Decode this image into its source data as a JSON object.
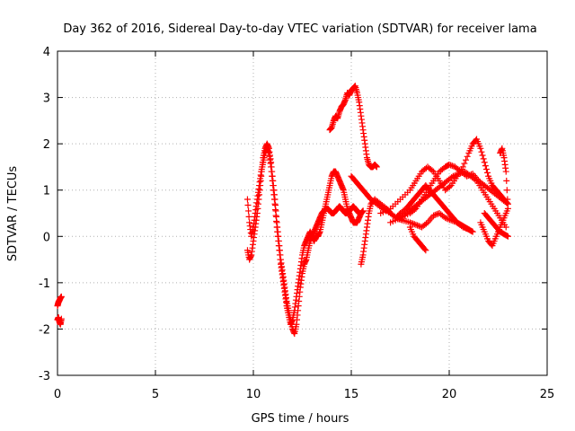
{
  "chart_data": {
    "type": "scatter",
    "title": "Day 362 of 2016, Sidereal Day-to-day VTEC variation (SDTVAR) for receiver lama",
    "xlabel": "GPS time / hours",
    "ylabel": "SDTVAR / TECUs",
    "xlim": [
      0,
      25
    ],
    "ylim": [
      -3,
      4
    ],
    "xticks": [
      "0",
      "5",
      "10",
      "15",
      "20",
      "25"
    ],
    "yticks": [
      "-3",
      "-2",
      "-1",
      "0",
      "1",
      "2",
      "3",
      "4"
    ],
    "grid": true,
    "marker": "+",
    "color": "#ff0000",
    "series": [
      {
        "x": [
          0.0,
          0.05,
          0.1,
          0.15,
          0.2
        ],
        "y": [
          -1.5,
          -1.42,
          -1.38,
          -1.33,
          -1.3
        ]
      },
      {
        "x": [
          0.0,
          0.05,
          0.1,
          0.15,
          0.2
        ],
        "y": [
          -1.8,
          -1.75,
          -1.85,
          -1.9,
          -1.78
        ]
      },
      {
        "x": [
          9.7,
          9.8,
          9.9,
          10.0,
          10.1,
          10.2,
          10.3,
          10.4,
          10.5,
          10.6,
          10.7,
          10.8,
          10.9,
          11.0,
          11.1,
          11.2,
          11.3,
          11.4,
          11.5,
          11.6,
          11.7,
          11.8,
          11.9,
          12.0,
          12.1,
          12.2,
          12.3,
          12.4,
          12.5,
          12.6,
          12.7,
          12.8,
          12.9,
          13.0,
          13.1,
          13.2,
          13.3,
          13.4,
          13.5,
          13.6,
          13.7,
          13.8,
          13.9,
          14.0,
          14.1,
          14.2,
          14.3,
          14.4,
          14.5,
          14.6,
          14.7,
          14.8,
          14.9,
          15.0,
          15.1,
          15.2,
          15.3,
          15.4,
          15.5,
          15.6
        ],
        "y": [
          -0.3,
          -0.5,
          -0.4,
          -0.1,
          0.2,
          0.5,
          0.9,
          1.3,
          1.7,
          1.9,
          2.0,
          1.9,
          1.6,
          1.2,
          0.8,
          0.3,
          -0.1,
          -0.5,
          -0.8,
          -1.1,
          -1.4,
          -1.6,
          -1.8,
          -2.0,
          -2.1,
          -1.9,
          -1.5,
          -1.1,
          -0.8,
          -0.6,
          -0.5,
          -0.3,
          -0.1,
          0.0,
          -0.1,
          0.0,
          0.0,
          0.1,
          0.3,
          0.5,
          0.7,
          0.9,
          1.1,
          1.3,
          1.4,
          1.4,
          1.3,
          1.2,
          1.1,
          1.0,
          0.8,
          0.6,
          0.5,
          0.4,
          0.3,
          0.3,
          0.3,
          0.4,
          0.5,
          0.55
        ]
      },
      {
        "x": [
          9.7,
          9.8,
          9.9,
          10.0,
          10.1,
          10.2,
          10.3,
          10.4,
          10.5,
          10.6,
          10.7,
          10.8,
          10.9,
          11.0,
          11.1,
          11.2,
          11.3,
          11.4,
          11.5,
          11.6,
          11.7,
          11.8,
          11.9,
          12.0,
          12.1,
          12.2,
          12.3,
          12.4,
          12.5,
          12.6,
          12.7,
          12.8,
          12.9,
          13.0,
          13.1,
          13.2,
          13.3,
          13.4,
          13.5,
          13.6,
          13.7,
          13.8,
          13.9,
          14.0,
          14.1,
          14.2,
          14.3,
          14.4,
          14.5,
          14.6,
          14.7,
          14.8,
          14.9,
          15.0,
          15.1,
          15.2,
          15.3,
          15.4,
          15.5,
          15.6
        ],
        "y": [
          0.8,
          0.3,
          0.0,
          0.2,
          0.5,
          0.8,
          1.1,
          1.4,
          1.6,
          1.8,
          1.9,
          1.8,
          1.5,
          1.1,
          0.7,
          0.2,
          -0.2,
          -0.6,
          -0.9,
          -1.2,
          -1.5,
          -1.7,
          -1.9,
          -1.8,
          -1.6,
          -1.3,
          -1.0,
          -0.7,
          -0.4,
          -0.2,
          -0.1,
          0.0,
          0.1,
          0.0,
          0.1,
          0.2,
          0.3,
          0.4,
          0.5,
          0.55,
          0.6,
          0.6,
          0.55,
          0.5,
          0.5,
          0.55,
          0.6,
          0.65,
          0.6,
          0.55,
          0.5,
          0.5,
          0.55,
          0.6,
          0.65,
          0.6,
          0.55,
          0.5,
          0.5,
          0.55
        ]
      },
      {
        "x": [
          13.9,
          14.0,
          14.1,
          14.2,
          14.3,
          14.4,
          14.5,
          14.6,
          14.7,
          14.8,
          14.9,
          15.0,
          15.1,
          15.2,
          15.3,
          15.4,
          15.5,
          15.6,
          15.7,
          15.8,
          15.9,
          16.0,
          16.1,
          16.2,
          16.3
        ],
        "y": [
          2.3,
          2.35,
          2.5,
          2.6,
          2.55,
          2.7,
          2.8,
          2.85,
          2.95,
          3.1,
          3.05,
          3.15,
          3.2,
          3.25,
          3.1,
          2.9,
          2.6,
          2.3,
          2.0,
          1.7,
          1.55,
          1.5,
          1.5,
          1.55,
          1.5
        ]
      },
      {
        "x": [
          15.5,
          15.6,
          15.7,
          15.8,
          15.9,
          16.0,
          16.2,
          16.5,
          16.8,
          17.0,
          17.3,
          17.5,
          17.8,
          18.0,
          18.2,
          18.4,
          18.6,
          18.8,
          19.0,
          19.2,
          19.4,
          19.6,
          19.8,
          20.0,
          20.2,
          20.4,
          20.6,
          20.8,
          21.0
        ],
        "y": [
          -0.6,
          -0.4,
          -0.1,
          0.2,
          0.5,
          0.7,
          0.8,
          0.7,
          0.6,
          0.5,
          0.4,
          0.5,
          0.6,
          0.7,
          0.8,
          0.9,
          1.0,
          1.1,
          1.0,
          0.9,
          0.8,
          0.7,
          0.6,
          0.5,
          0.4,
          0.3,
          0.25,
          0.2,
          0.15
        ]
      },
      {
        "x": [
          15.0,
          15.2,
          15.4,
          15.6,
          15.8,
          16.0,
          16.3,
          16.6,
          17.0,
          17.3,
          17.6,
          18.0,
          18.3,
          18.6,
          18.9,
          19.2,
          19.5,
          19.8,
          20.1,
          20.4,
          20.7,
          21.0,
          21.2
        ],
        "y": [
          1.3,
          1.2,
          1.1,
          1.0,
          0.9,
          0.8,
          0.7,
          0.6,
          0.5,
          0.4,
          0.35,
          0.3,
          0.25,
          0.2,
          0.3,
          0.45,
          0.5,
          0.4,
          0.35,
          0.3,
          0.2,
          0.15,
          0.1
        ]
      },
      {
        "x": [
          16.5,
          17.0,
          17.5,
          18.0,
          18.3,
          18.6,
          18.9,
          19.2,
          19.5,
          19.8,
          20.1,
          20.4,
          20.7,
          21.0,
          21.2,
          21.4,
          21.6,
          21.8,
          22.0,
          22.2,
          22.4,
          22.6,
          22.8,
          23.0
        ],
        "y": [
          0.5,
          0.6,
          0.8,
          1.0,
          1.2,
          1.4,
          1.5,
          1.4,
          1.2,
          1.0,
          1.1,
          1.3,
          1.5,
          1.8,
          2.0,
          2.1,
          1.9,
          1.6,
          1.3,
          1.1,
          1.0,
          0.9,
          0.8,
          0.7
        ]
      },
      {
        "x": [
          17.0,
          17.5,
          18.0,
          18.3,
          18.6,
          18.9,
          19.2,
          19.5,
          19.8,
          20.0,
          20.3,
          20.6,
          20.9,
          21.2,
          21.5,
          21.8,
          22.1,
          22.4,
          22.7,
          23.0
        ],
        "y": [
          0.3,
          0.4,
          0.5,
          0.6,
          0.8,
          1.0,
          1.2,
          1.4,
          1.5,
          1.55,
          1.5,
          1.4,
          1.3,
          1.35,
          1.2,
          1.1,
          1.0,
          0.9,
          0.8,
          0.7
        ]
      },
      {
        "x": [
          17.5,
          17.8,
          18.1,
          18.4,
          18.7,
          19.0,
          19.3,
          19.6,
          19.9,
          20.2,
          20.5,
          20.8,
          21.1,
          21.4,
          21.7,
          22.0,
          22.3,
          22.6,
          22.9
        ],
        "y": [
          0.4,
          0.5,
          0.6,
          0.7,
          0.8,
          0.9,
          1.0,
          1.1,
          1.2,
          1.3,
          1.35,
          1.4,
          1.3,
          1.2,
          1.0,
          0.8,
          0.6,
          0.4,
          0.2
        ]
      },
      {
        "x": [
          18.0,
          18.2,
          18.4,
          18.6,
          18.8
        ],
        "y": [
          0.2,
          0.0,
          -0.1,
          -0.2,
          -0.3
        ]
      },
      {
        "x": [
          21.6,
          21.8,
          22.0,
          22.2,
          22.4,
          22.6,
          22.8,
          23.0,
          22.9,
          22.8,
          22.7,
          22.6
        ],
        "y": [
          0.3,
          0.1,
          -0.1,
          -0.2,
          0.0,
          0.2,
          0.4,
          0.6,
          1.4,
          1.7,
          1.9,
          1.8
        ]
      },
      {
        "x": [
          21.8,
          22.0,
          22.2,
          22.4,
          22.6,
          22.8,
          23.0
        ],
        "y": [
          0.5,
          0.4,
          0.3,
          0.2,
          0.1,
          0.05,
          0.0
        ]
      }
    ]
  }
}
